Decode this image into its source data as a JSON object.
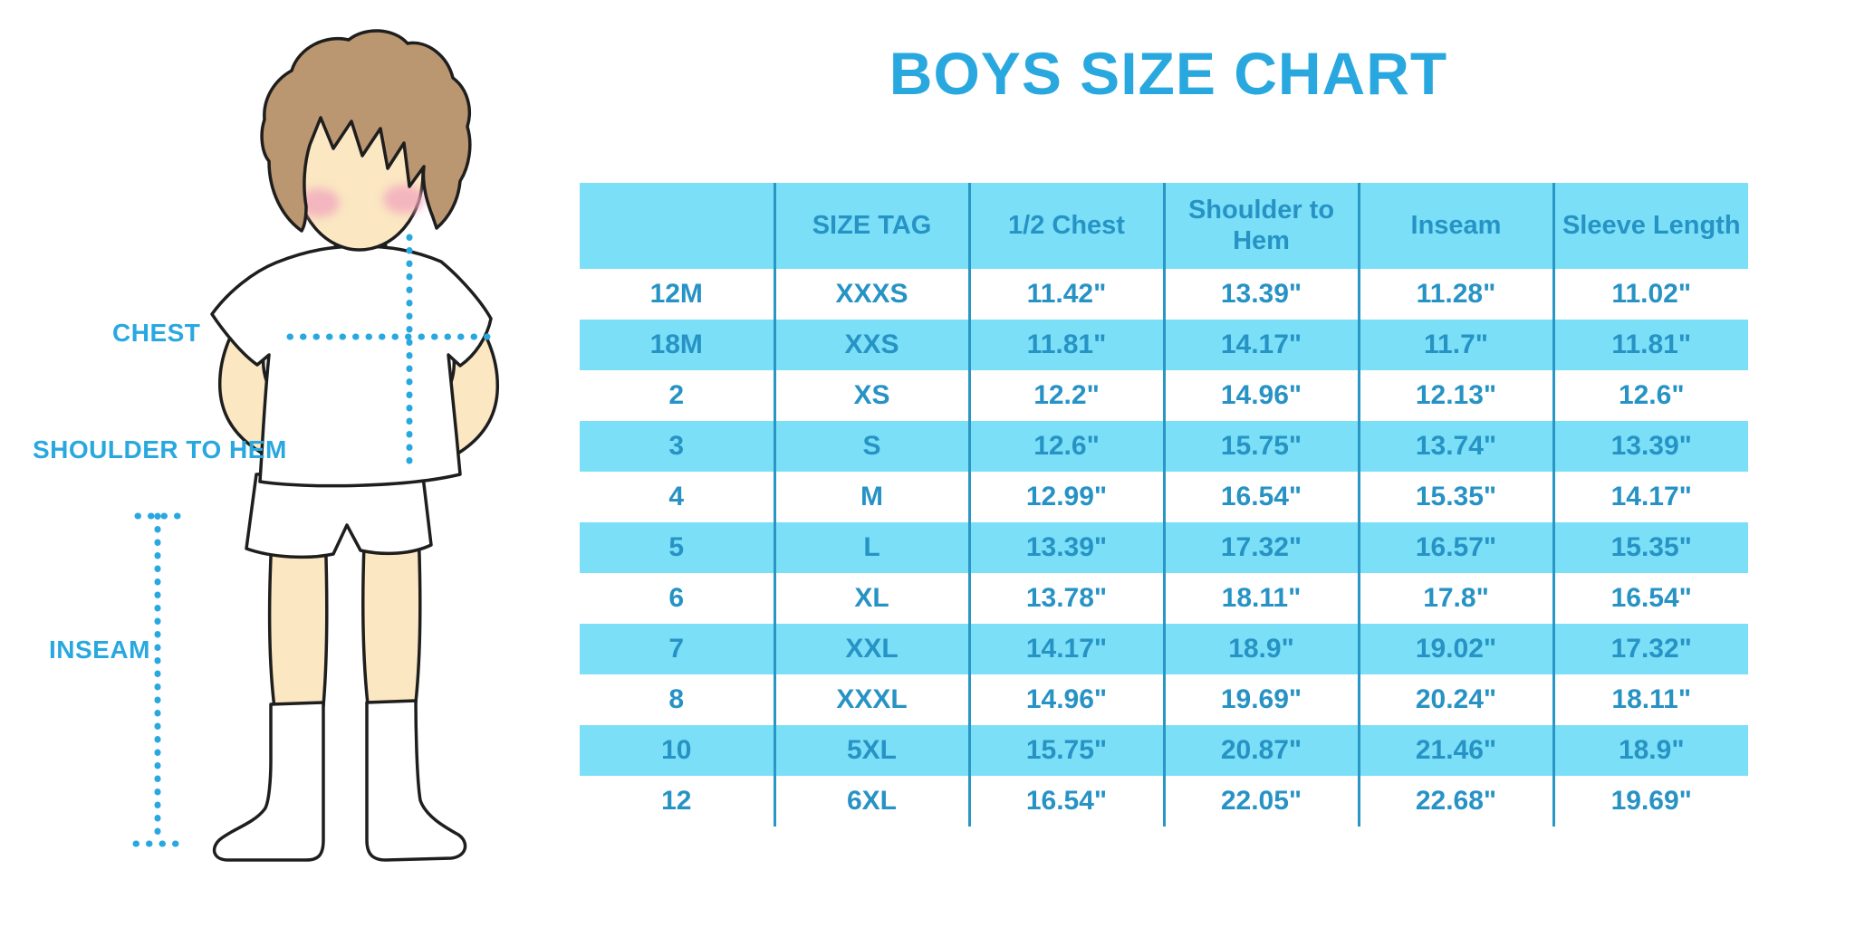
{
  "page_title": "BOYS SIZE CHART",
  "diagram": {
    "chest_label": "CHEST",
    "shoulder_to_hem_label": "SHOULDER TO HEM",
    "inseam_label": "INSEAM"
  },
  "chart_data": {
    "type": "table",
    "title": "BOYS SIZE CHART",
    "columns": [
      "",
      "SIZE TAG",
      "1/2 Chest",
      "Shoulder to Hem",
      "Inseam",
      "Sleeve Length"
    ],
    "rows": [
      [
        "12M",
        "XXXS",
        "11.42\"",
        "13.39\"",
        "11.28\"",
        "11.02\""
      ],
      [
        "18M",
        "XXS",
        "11.81\"",
        "14.17\"",
        "11.7\"",
        "11.81\""
      ],
      [
        "2",
        "XS",
        "12.2\"",
        "14.96\"",
        "12.13\"",
        "12.6\""
      ],
      [
        "3",
        "S",
        "12.6\"",
        "15.75\"",
        "13.74\"",
        "13.39\""
      ],
      [
        "4",
        "M",
        "12.99\"",
        "16.54\"",
        "15.35\"",
        "14.17\""
      ],
      [
        "5",
        "L",
        "13.39\"",
        "17.32\"",
        "16.57\"",
        "15.35\""
      ],
      [
        "6",
        "XL",
        "13.78\"",
        "18.11\"",
        "17.8\"",
        "16.54\""
      ],
      [
        "7",
        "XXL",
        "14.17\"",
        "18.9\"",
        "19.02\"",
        "17.32\""
      ],
      [
        "8",
        "XXXL",
        "14.96\"",
        "19.69\"",
        "20.24\"",
        "18.11\""
      ],
      [
        "10",
        "5XL",
        "15.75\"",
        "20.87\"",
        "21.46\"",
        "18.9\""
      ],
      [
        "12",
        "6XL",
        "16.54\"",
        "22.05\"",
        "22.68\"",
        "19.69\""
      ]
    ],
    "row_stripe_colors": [
      "#FFFFFF",
      "#7BDFF8"
    ],
    "header_fill": "#7BDFF8",
    "legend_position": "none",
    "grid": "vertical-dividers-only"
  },
  "colors": {
    "accent_blue": "#29A8E0",
    "table_fill_blue": "#7BDFF8",
    "table_text_blue": "#2793C5",
    "divider_blue": "#2A96C6",
    "skin": "#FBE7C2",
    "hair_brown": "#BA9770",
    "cheek_pink": "#F2A9BE",
    "outline": "#1E1E1E"
  }
}
